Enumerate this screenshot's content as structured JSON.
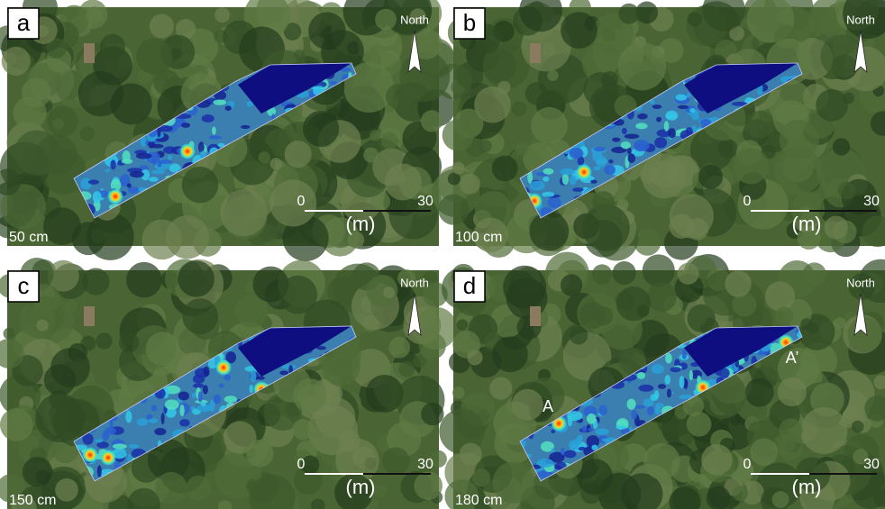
{
  "panels": [
    {
      "letter": "a",
      "depth": "50 cm",
      "north": "North",
      "scale": {
        "start": "0",
        "end": "30",
        "unit": "(m)"
      }
    },
    {
      "letter": "b",
      "depth": "100 cm",
      "north": "North",
      "scale": {
        "start": "0",
        "end": "30",
        "unit": "(m)"
      }
    },
    {
      "letter": "c",
      "depth": "150 cm",
      "north": "North",
      "scale": {
        "start": "0",
        "end": "30",
        "unit": "(m)"
      }
    },
    {
      "letter": "d",
      "depth": "180 cm",
      "north": "North",
      "scale": {
        "start": "0",
        "end": "30",
        "unit": "(m)"
      },
      "markers": [
        "A",
        "A’"
      ]
    }
  ]
}
